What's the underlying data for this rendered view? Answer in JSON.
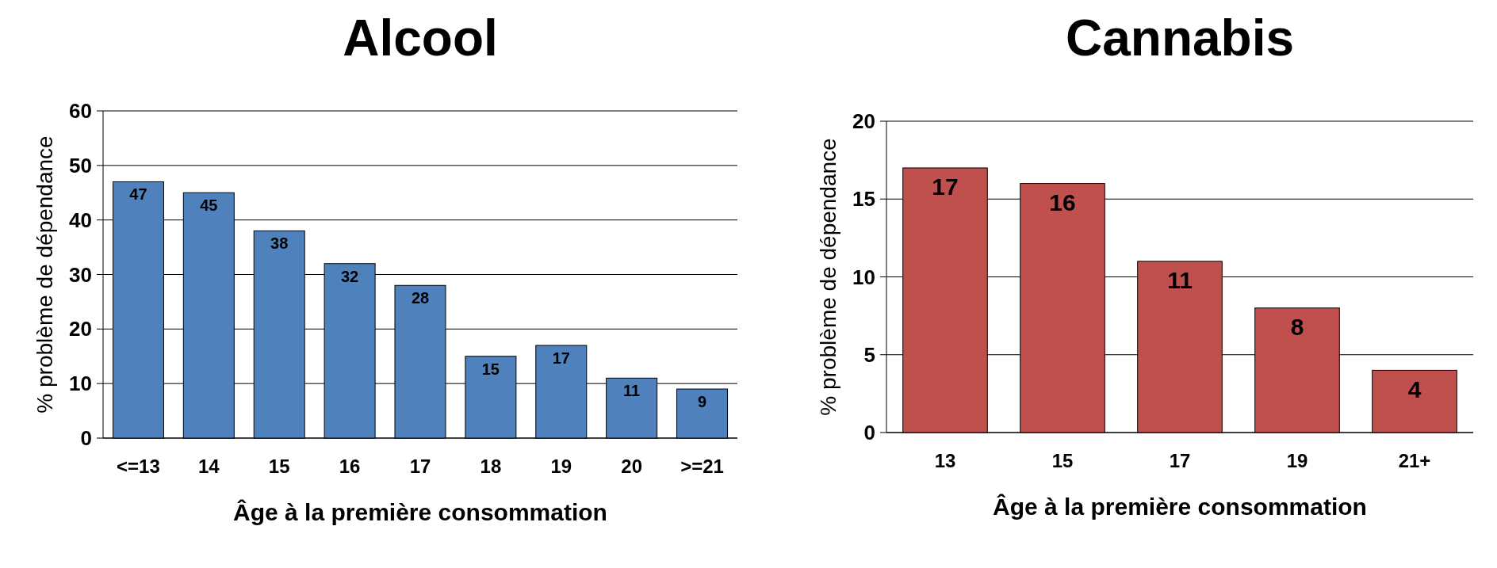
{
  "chart_data": [
    {
      "type": "bar",
      "title": "Alcool",
      "xlabel": "Âge à la première consommation",
      "ylabel": "%  problème de dépendance",
      "categories": [
        "<=13",
        "14",
        "15",
        "16",
        "17",
        "18",
        "19",
        "20",
        ">=21"
      ],
      "values": [
        47,
        45,
        38,
        32,
        28,
        15,
        17,
        11,
        9
      ],
      "color": "#4f81bd",
      "ylim": [
        0,
        60
      ],
      "yticks": [
        0,
        10,
        20,
        30,
        40,
        50,
        60
      ],
      "grid": "y",
      "data_labels": true
    },
    {
      "type": "bar",
      "title": "Cannabis",
      "xlabel": "Âge à la première consommation",
      "ylabel": "%  problème de dépendance",
      "categories": [
        "13",
        "15",
        "17",
        "19",
        "21+"
      ],
      "values": [
        17,
        16,
        11,
        8,
        4
      ],
      "color": "#c0504d",
      "ylim": [
        0,
        20
      ],
      "yticks": [
        0,
        5,
        10,
        15,
        20
      ],
      "grid": "y",
      "data_labels": true
    }
  ]
}
